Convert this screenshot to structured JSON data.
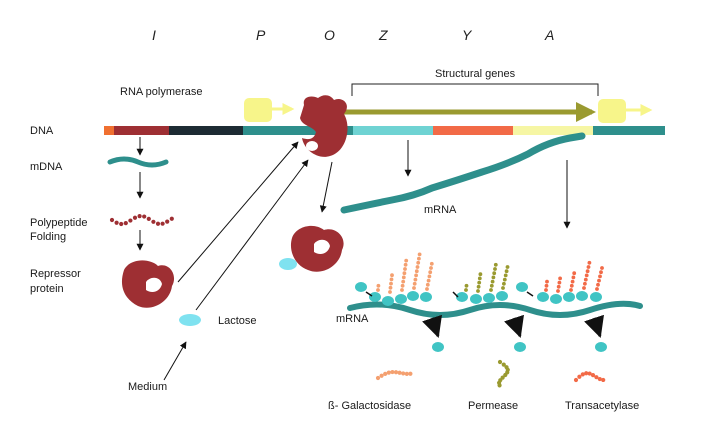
{
  "genes": [
    "I",
    "P",
    "O",
    "Z",
    "Y",
    "A"
  ],
  "labels": {
    "dna": "DNA",
    "rna_polymerase": "RNA polymerase",
    "structural_genes": "Structural genes",
    "mdna": "mDNA",
    "polypeptide_line1": "Polypeptide",
    "polypeptide_line2": "Folding",
    "repressor_line1": "Repressor",
    "repressor_line2": "protein",
    "lactose": "Lactose",
    "medium": "Medium",
    "mrna_top": "mRNA",
    "mrna_bottom": "mRNA",
    "galactosidase": "ß- Galactosidase",
    "permease": "Permease",
    "transacetylase": "Transacetylase"
  },
  "colors": {
    "dna_start": "#f07030",
    "gene_i": "#9e2f33",
    "gene_i_dark": "#1d2b33",
    "promoter": "#2e8f8c",
    "gene_z": "#6fd3d3",
    "gene_y": "#f26a47",
    "gene_a": "#f6f6a4",
    "dna_end": "#2e8f8c",
    "repressor": "#9e2f33",
    "lactose": "#7fe2f0",
    "mrna": "#2e8f8c",
    "ribosome": "#40c4c4",
    "arrow_olive": "#9a9a30",
    "polymerase_box": "#f7f58a",
    "galactosidase_chain": "#f4a070",
    "permease_chain": "#9a9a30",
    "transacetylase_chain": "#f26a47"
  }
}
